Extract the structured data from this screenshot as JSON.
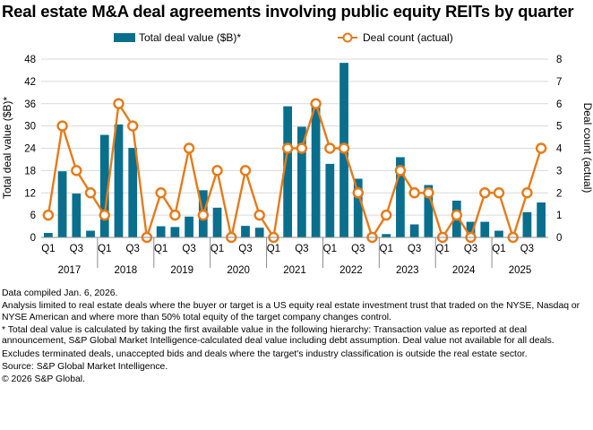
{
  "chart_data": {
    "type": "bar+line",
    "title": "Real estate M&A deal agreements involving public equity REITs by quarter",
    "legend": [
      "Total deal value ($B)*",
      "Deal count (actual)"
    ],
    "colors": {
      "bar": "#0a6f8d",
      "line": "#e57b1a",
      "marker_fill": "#ffffff"
    },
    "ylabel_left": "Total deal value ($B)*",
    "ylabel_right": "Deal count (actual)",
    "ylim_left": [
      0,
      48
    ],
    "ylim_right": [
      0,
      8
    ],
    "yticks_left": [
      "0",
      "6",
      "12",
      "18",
      "24",
      "30",
      "36",
      "42",
      "48"
    ],
    "yticks_right": [
      "0",
      "1",
      "2",
      "3",
      "4",
      "5",
      "6",
      "7",
      "8"
    ],
    "years": [
      "2017",
      "2018",
      "2019",
      "2020",
      "2021",
      "2022",
      "2023",
      "2024",
      "2025"
    ],
    "quarter_labels": [
      "Q1",
      "",
      "Q3",
      ""
    ],
    "categories": [
      "2017 Q1",
      "2017 Q2",
      "2017 Q3",
      "2017 Q4",
      "2018 Q1",
      "2018 Q2",
      "2018 Q3",
      "2018 Q4",
      "2019 Q1",
      "2019 Q2",
      "2019 Q3",
      "2019 Q4",
      "2020 Q1",
      "2020 Q2",
      "2020 Q3",
      "2020 Q4",
      "2021 Q1",
      "2021 Q2",
      "2021 Q3",
      "2021 Q4",
      "2022 Q1",
      "2022 Q2",
      "2022 Q3",
      "2022 Q4",
      "2023 Q1",
      "2023 Q2",
      "2023 Q3",
      "2023 Q4",
      "2024 Q1",
      "2024 Q2",
      "2024 Q3",
      "2024 Q4",
      "2025 Q1",
      "2025 Q2",
      "2025 Q3",
      "2025 Q4"
    ],
    "series": [
      {
        "name": "Total deal value ($B)*",
        "type": "bar",
        "axis": "left",
        "values": [
          1.2,
          17.8,
          11.8,
          1.8,
          27.6,
          30.4,
          24.1,
          0,
          3.0,
          2.8,
          5.6,
          12.7,
          8.0,
          0,
          3.1,
          2.6,
          0,
          35.3,
          29.8,
          36.6,
          19.8,
          47.0,
          15.8,
          0,
          0.9,
          21.6,
          3.5,
          14.1,
          0,
          9.9,
          4.2,
          4.2,
          1.8,
          0,
          6.8,
          9.4
        ]
      },
      {
        "name": "Deal count (actual)",
        "type": "line",
        "axis": "right",
        "values": [
          1,
          5,
          3,
          2,
          1,
          6,
          5,
          0,
          2,
          1,
          4,
          1,
          3,
          0,
          3,
          1,
          0,
          4,
          4,
          6,
          4,
          4,
          2,
          0,
          1,
          3,
          2,
          2,
          0,
          1,
          0,
          2,
          2,
          0,
          2,
          4
        ]
      }
    ]
  },
  "notes": [
    "Data compiled Jan. 6, 2026.",
    "Analysis limited to real estate deals where the buyer or target is a US equity real estate investment trust that traded on the NYSE, Nasdaq or NYSE American and where more than 50% total equity of the target company changes control.",
    "* Total deal value is calculated by taking the first available value in the following hierarchy: Transaction value as reported at deal announcement, S&P Global Market Intelligence-calculated deal value including debt assumption. Deal value not available for all deals.",
    "Excludes terminated deals, unaccepted bids and deals where the target's industry classification is outside the real estate sector.",
    "Source: S&P Global Market Intelligence.",
    "© 2026 S&P Global."
  ]
}
